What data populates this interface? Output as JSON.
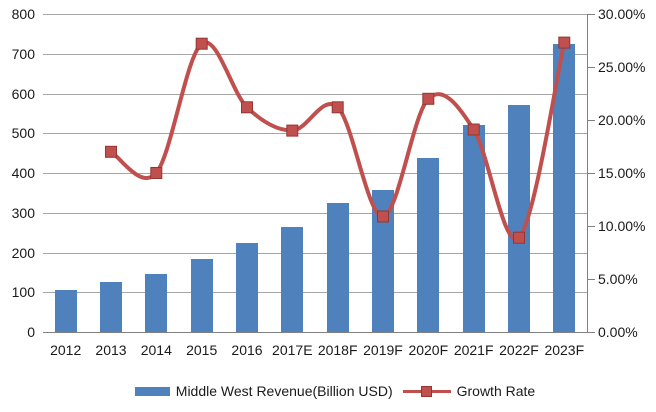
{
  "chart_data": {
    "type": "bar",
    "subtype": "combo-bar-line",
    "title": "",
    "categories": [
      "2012",
      "2013",
      "2014",
      "2015",
      "2016",
      "2017E",
      "2018F",
      "2019F",
      "2020F",
      "2021F",
      "2022F",
      "2023F"
    ],
    "series": [
      {
        "name": "Middle West Revenue(Billion USD)",
        "type": "bar",
        "axis": "left",
        "color": "#4F81BD",
        "values": [
          107,
          126,
          146,
          184,
          223,
          264,
          324,
          358,
          438,
          520,
          570,
          724
        ]
      },
      {
        "name": "Growth Rate",
        "type": "line",
        "axis": "right",
        "color": "#C0504D",
        "marker": "square",
        "marker_border": "#943634",
        "values_percent": [
          null,
          17.0,
          15.0,
          27.2,
          21.2,
          19.0,
          21.2,
          10.9,
          22.0,
          19.1,
          8.9,
          27.3
        ]
      }
    ],
    "left_axis": {
      "min": 0,
      "max": 800,
      "step": 100,
      "labels": [
        "800",
        "700",
        "600",
        "500",
        "400",
        "300",
        "200",
        "100",
        "0"
      ]
    },
    "right_axis": {
      "min": 0,
      "max": 30,
      "step": 5,
      "labels": [
        "30.00%",
        "25.00%",
        "20.00%",
        "15.00%",
        "10.00%",
        "5.00%",
        "0.00%"
      ]
    },
    "grid": true,
    "legend_position": "bottom",
    "line_smooth": true
  },
  "colors": {
    "bar": "#4F81BD",
    "line": "#C0504D",
    "marker_border": "#943634",
    "grid": "#A6A6A6",
    "axis": "#808080",
    "text": "#1A1A1A",
    "background": "#FFFFFF"
  }
}
